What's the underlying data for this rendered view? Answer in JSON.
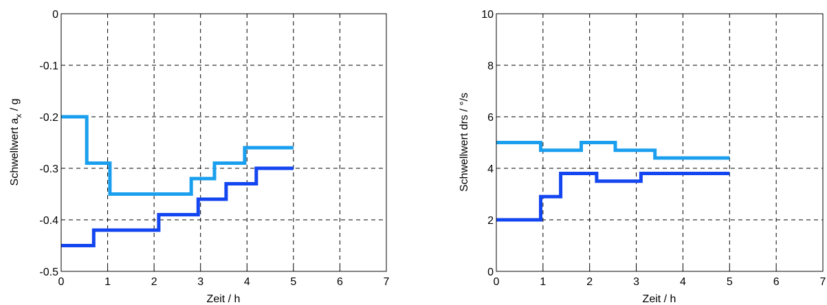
{
  "chart_data": [
    {
      "type": "line",
      "step": true,
      "xlabel": "Zeit / h",
      "ylabel": "Schwellwert a",
      "ylabel_sub": "x",
      "ylabel_unit": " / g",
      "xlim": [
        0,
        7
      ],
      "ylim": [
        -0.5,
        0
      ],
      "xticks": [
        "0",
        "1",
        "2",
        "3",
        "4",
        "5",
        "6",
        "7"
      ],
      "yticks": [
        "0",
        "-0.1",
        "-0.2",
        "-0.3",
        "-0.4",
        "-0.5"
      ],
      "ytick_values": [
        0,
        -0.1,
        -0.2,
        -0.3,
        -0.4,
        -0.5
      ],
      "grid": true,
      "series": [
        {
          "color": "#1a9fef",
          "x": [
            0,
            0.55,
            0.55,
            1.05,
            1.05,
            2.8,
            2.8,
            3.3,
            3.3,
            3.95,
            3.95,
            5.0
          ],
          "y": [
            -0.2,
            -0.2,
            -0.29,
            -0.29,
            -0.35,
            -0.35,
            -0.32,
            -0.32,
            -0.29,
            -0.29,
            -0.26,
            -0.26
          ]
        },
        {
          "color": "#1346f0",
          "x": [
            0,
            0.7,
            0.7,
            2.1,
            2.1,
            2.95,
            2.95,
            3.55,
            3.55,
            4.2,
            4.2,
            5.0
          ],
          "y": [
            -0.45,
            -0.45,
            -0.42,
            -0.42,
            -0.39,
            -0.39,
            -0.36,
            -0.36,
            -0.33,
            -0.33,
            -0.3,
            -0.3
          ]
        }
      ]
    },
    {
      "type": "line",
      "step": true,
      "xlabel": "Zeit / h",
      "ylabel": "Schwellwert drs / °/s",
      "xlim": [
        0,
        7
      ],
      "ylim": [
        0,
        10
      ],
      "xticks": [
        "0",
        "1",
        "2",
        "3",
        "4",
        "5",
        "6",
        "7"
      ],
      "yticks": [
        "10",
        "8",
        "6",
        "4",
        "2",
        "0"
      ],
      "ytick_values": [
        10,
        8,
        6,
        4,
        2,
        0
      ],
      "grid": true,
      "series": [
        {
          "color": "#1a9fef",
          "x": [
            0,
            0.95,
            0.95,
            1.82,
            1.82,
            2.55,
            2.55,
            3.4,
            3.4,
            5.0
          ],
          "y": [
            5.0,
            5.0,
            4.7,
            4.7,
            5.0,
            5.0,
            4.7,
            4.7,
            4.4,
            4.4
          ]
        },
        {
          "color": "#1346f0",
          "x": [
            0,
            0.95,
            0.95,
            1.38,
            1.38,
            2.15,
            2.15,
            3.1,
            3.1,
            5.0
          ],
          "y": [
            2.0,
            2.0,
            2.9,
            2.9,
            3.8,
            3.8,
            3.5,
            3.5,
            3.8,
            3.8
          ]
        }
      ]
    }
  ]
}
